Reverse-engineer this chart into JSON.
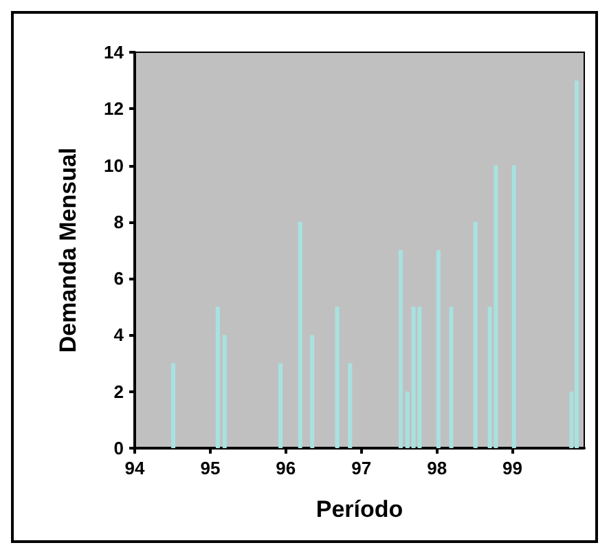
{
  "chart_data": {
    "type": "bar",
    "xlabel": "Período",
    "ylabel": "Demanda Mensual",
    "x": [
      94.51,
      95.1,
      95.19,
      95.93,
      96.19,
      96.35,
      96.68,
      96.85,
      97.52,
      97.61,
      97.69,
      97.77,
      98.02,
      98.19,
      98.51,
      98.7,
      98.78,
      99.02,
      99.78,
      99.85
    ],
    "values": [
      3,
      5,
      4,
      3,
      8,
      4,
      5,
      3,
      7,
      2,
      5,
      5,
      7,
      5,
      8,
      5,
      10,
      10,
      2,
      13
    ],
    "color": "#a8e2e0",
    "xlim": [
      94,
      99.95
    ],
    "xticks": [
      94,
      95,
      96,
      97,
      98,
      99
    ],
    "ylim": [
      0,
      14
    ],
    "yticks": [
      0,
      2,
      4,
      6,
      8,
      10,
      12,
      14
    ],
    "grid": false
  }
}
